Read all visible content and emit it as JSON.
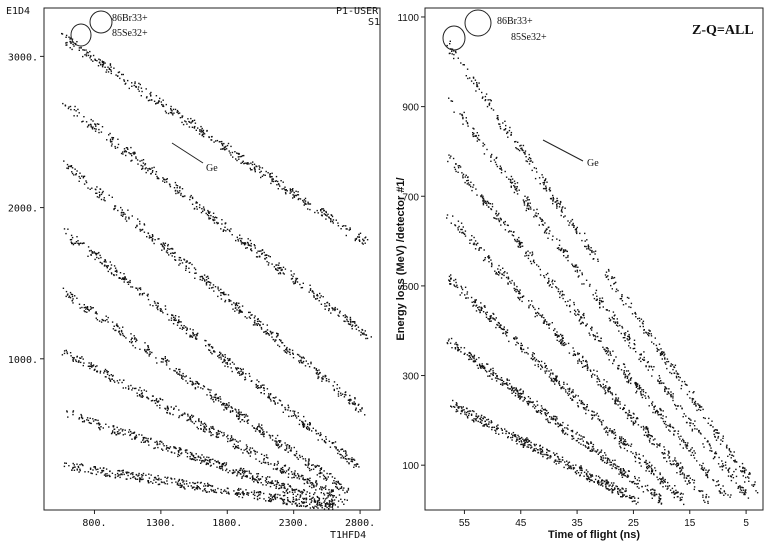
{
  "chart_data": [
    {
      "type": "scatter",
      "panel": "left",
      "header_left": "E1D4",
      "header_right_1": "P1-USER",
      "header_right_2": "S1",
      "xlabel": "T1HFD4",
      "ylabel": "",
      "x_ticks": [
        "800.",
        "1300.",
        "1800.",
        "2300.",
        "2800."
      ],
      "x_tick_values": [
        800,
        1300,
        1800,
        2300,
        2800
      ],
      "y_ticks": [
        "1000.",
        "2000.",
        "3000."
      ],
      "y_tick_values": [
        1000,
        2000,
        3000
      ],
      "xlim": [
        420,
        2950
      ],
      "ylim": [
        0,
        3320
      ],
      "annotations": [
        "86Br33+",
        "85Se32+",
        "Ge"
      ],
      "bands": [
        {
          "x0": 560,
          "y0": 3130,
          "x1": 2880,
          "y1": 1750
        },
        {
          "x0": 560,
          "y0": 2700,
          "x1": 2860,
          "y1": 1150
        },
        {
          "x0": 560,
          "y0": 2300,
          "x1": 2830,
          "y1": 650
        },
        {
          "x0": 560,
          "y0": 1850,
          "x1": 2780,
          "y1": 300
        },
        {
          "x0": 560,
          "y0": 1450,
          "x1": 2720,
          "y1": 120
        },
        {
          "x0": 560,
          "y0": 1050,
          "x1": 2680,
          "y1": 60
        },
        {
          "x0": 560,
          "y0": 650,
          "x1": 2640,
          "y1": 30
        },
        {
          "x0": 560,
          "y0": 300,
          "x1": 2600,
          "y1": 20
        }
      ]
    },
    {
      "type": "scatter",
      "panel": "right",
      "title": "Z-Q=ALL",
      "xlabel": "Time of flight (ns)",
      "ylabel": "Energy loss (MeV) /detector #1/",
      "x_ticks": [
        "55",
        "45",
        "35",
        "25",
        "15",
        "5"
      ],
      "x_tick_values": [
        55,
        45,
        35,
        25,
        15,
        5
      ],
      "y_ticks": [
        "100",
        "300",
        "500",
        "700",
        "900",
        "1100"
      ],
      "y_tick_values": [
        100,
        300,
        500,
        700,
        900,
        1100
      ],
      "xlim": [
        62,
        2
      ],
      "ylim": [
        0,
        1120
      ],
      "annotations": [
        "86Br33+",
        "85Se32+",
        "Ge"
      ],
      "bands": [
        {
          "x0": 58,
          "y0": 1040,
          "x1": 3,
          "y1": 40
        },
        {
          "x0": 58,
          "y0": 920,
          "x1": 5,
          "y1": 30
        },
        {
          "x0": 58,
          "y0": 790,
          "x1": 8,
          "y1": 25
        },
        {
          "x0": 58,
          "y0": 660,
          "x1": 12,
          "y1": 25
        },
        {
          "x0": 58,
          "y0": 520,
          "x1": 16,
          "y1": 20
        },
        {
          "x0": 58,
          "y0": 380,
          "x1": 20,
          "y1": 20
        },
        {
          "x0": 58,
          "y0": 240,
          "x1": 24,
          "y1": 20
        }
      ]
    }
  ]
}
